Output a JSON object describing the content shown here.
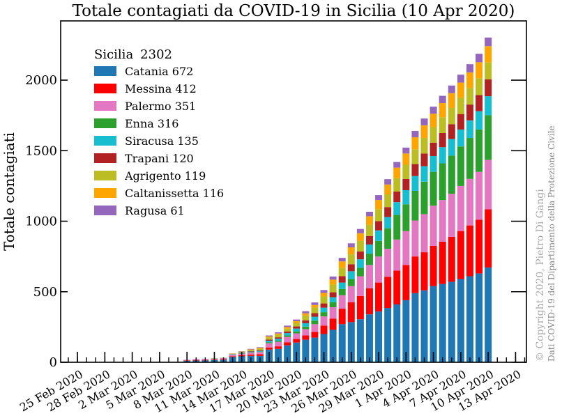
{
  "chart_data": {
    "type": "bar",
    "stacked": true,
    "title": "Totale contagiati da COVID-19 in Sicilia (10 Apr 2020)",
    "ylabel": "Totale contagiati",
    "ylim": [
      0,
      2420
    ],
    "yticks": [
      0,
      500,
      1000,
      1500,
      2000
    ],
    "date_start": "24 Feb 2020",
    "xtick_labels": [
      "25 Feb 2020",
      "28 Feb 2020",
      "2 Mar 2020",
      "5 Mar 2020",
      "8 Mar 2020",
      "11 Mar 2020",
      "14 Mar 2020",
      "17 Mar 2020",
      "20 Mar 2020",
      "23 Mar 2020",
      "26 Mar 2020",
      "29 Mar 2020",
      "1 Apr 2020",
      "4 Apr 2020",
      "7 Apr 2020",
      "10 Apr 2020",
      "13 Apr 2020"
    ],
    "legend": {
      "title": "Sicilia",
      "total": "2302",
      "position": "upper-left"
    },
    "categories": [
      "8 Mar 2020",
      "9 Mar 2020",
      "10 Mar 2020",
      "11 Mar 2020",
      "12 Mar 2020",
      "13 Mar 2020",
      "14 Mar 2020",
      "15 Mar 2020",
      "16 Mar 2020",
      "17 Mar 2020",
      "18 Mar 2020",
      "19 Mar 2020",
      "20 Mar 2020",
      "21 Mar 2020",
      "22 Mar 2020",
      "23 Mar 2020",
      "24 Mar 2020",
      "25 Mar 2020",
      "26 Mar 2020",
      "27 Mar 2020",
      "28 Mar 2020",
      "29 Mar 2020",
      "30 Mar 2020",
      "31 Mar 2020",
      "1 Apr 2020",
      "2 Apr 2020",
      "3 Apr 2020",
      "4 Apr 2020",
      "5 Apr 2020",
      "6 Apr 2020",
      "7 Apr 2020",
      "8 Apr 2020",
      "9 Apr 2020",
      "10 Apr 2020"
    ],
    "series": [
      {
        "name": "Catania",
        "label": "Catania 672",
        "color": "#1f77b4",
        "values": [
          10,
          12,
          13,
          15,
          18,
          37,
          42,
          45,
          45,
          90,
          95,
          120,
          140,
          160,
          175,
          200,
          230,
          270,
          285,
          305,
          340,
          360,
          385,
          410,
          440,
          490,
          510,
          540,
          555,
          570,
          590,
          610,
          630,
          672
        ]
      },
      {
        "name": "Messina",
        "label": "Messina 412",
        "color": "#ff0000",
        "values": [
          2,
          3,
          3,
          3,
          4,
          6,
          8,
          10,
          12,
          15,
          18,
          22,
          25,
          30,
          40,
          60,
          80,
          110,
          140,
          165,
          185,
          205,
          220,
          240,
          250,
          260,
          270,
          285,
          300,
          320,
          340,
          360,
          380,
          412
        ]
      },
      {
        "name": "Palermo",
        "label": "Palermo 351",
        "color": "#e377c2",
        "values": [
          6,
          8,
          8,
          8,
          8,
          10,
          12,
          14,
          16,
          30,
          32,
          38,
          40,
          45,
          55,
          65,
          80,
          95,
          115,
          140,
          165,
          185,
          200,
          220,
          240,
          255,
          270,
          285,
          295,
          305,
          320,
          330,
          340,
          351
        ]
      },
      {
        "name": "Enna",
        "label": "Enna 316",
        "color": "#2ca02c",
        "values": [
          0,
          0,
          0,
          0,
          0,
          2,
          3,
          3,
          3,
          6,
          8,
          10,
          14,
          18,
          25,
          30,
          35,
          45,
          50,
          60,
          80,
          110,
          145,
          175,
          190,
          210,
          230,
          240,
          260,
          270,
          280,
          290,
          300,
          316
        ]
      },
      {
        "name": "Siracusa",
        "label": "Siracusa 135",
        "color": "#17becf",
        "values": [
          0,
          0,
          1,
          1,
          1,
          2,
          3,
          4,
          5,
          12,
          14,
          17,
          20,
          24,
          28,
          32,
          36,
          45,
          55,
          60,
          65,
          75,
          80,
          90,
          100,
          105,
          110,
          112,
          115,
          118,
          120,
          125,
          130,
          135
        ]
      },
      {
        "name": "Trapani",
        "label": "Trapani 120",
        "color": "#b22222",
        "values": [
          0,
          0,
          0,
          0,
          0,
          1,
          2,
          3,
          5,
          8,
          10,
          12,
          15,
          20,
          25,
          30,
          35,
          45,
          50,
          55,
          60,
          65,
          70,
          75,
          80,
          85,
          90,
          95,
          100,
          105,
          110,
          112,
          115,
          120
        ]
      },
      {
        "name": "Agrigento",
        "label": "Agrigento 119",
        "color": "#bcbd22",
        "values": [
          0,
          0,
          0,
          2,
          2,
          3,
          5,
          8,
          10,
          15,
          18,
          20,
          25,
          35,
          40,
          50,
          55,
          60,
          70,
          75,
          80,
          85,
          90,
          95,
          100,
          105,
          110,
          110,
          112,
          115,
          115,
          118,
          119,
          119
        ]
      },
      {
        "name": "Caltanissetta",
        "label": "Caltanissetta 116",
        "color": "#ffa500",
        "values": [
          0,
          0,
          0,
          0,
          0,
          1,
          2,
          4,
          6,
          7,
          9,
          11,
          12,
          15,
          18,
          25,
          35,
          45,
          50,
          55,
          60,
          65,
          70,
          75,
          80,
          85,
          90,
          95,
          100,
          105,
          108,
          110,
          113,
          116
        ]
      },
      {
        "name": "Ragusa",
        "label": "Ragusa 61",
        "color": "#9467bd",
        "values": [
          0,
          0,
          0,
          0,
          0,
          1,
          2,
          4,
          5,
          7,
          8,
          10,
          12,
          15,
          18,
          20,
          22,
          25,
          28,
          30,
          32,
          35,
          38,
          40,
          42,
          45,
          48,
          50,
          52,
          54,
          56,
          58,
          60,
          61
        ]
      }
    ]
  },
  "watermark": {
    "copyright": "© Copyright 2020, Pietro Di Gangi",
    "source": "Dati COVID-19 del Dipartimento della Protezione Civile"
  }
}
